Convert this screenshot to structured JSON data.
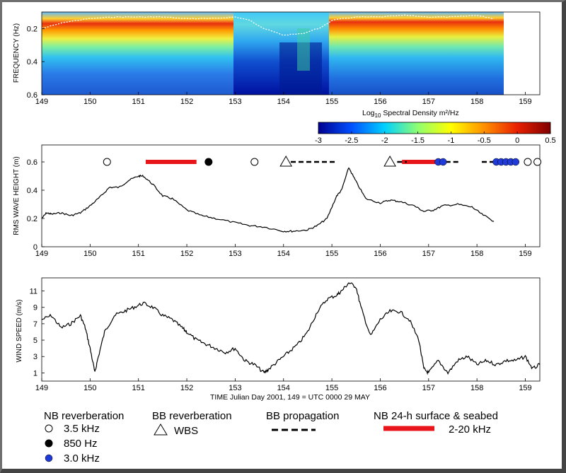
{
  "colors": {
    "trace": "#000000",
    "nb_surface_seabed": "#e8161a",
    "marker_850hz": "#000000",
    "marker_3khz": "#1f3ad6",
    "bb_propagation": "#000000",
    "peak_frequency_trace": "#ffffff"
  },
  "chart_data": [
    {
      "type": "heatmap",
      "ylabel": "FREQUENCY (Hz)",
      "x_ticks": [
        "149",
        "150",
        "151",
        "152",
        "153",
        "154",
        "155",
        "156",
        "157",
        "158",
        "159"
      ],
      "y_ticks": [
        "0.2",
        "0.4",
        "0.6"
      ],
      "xlim": [
        149,
        159.3
      ],
      "ylim": [
        0.6,
        0.1
      ],
      "data_extent_x": [
        149,
        158.35
      ],
      "colorbar": {
        "label_main": "Log",
        "label_sub": "10",
        "label_rest": " Spectral Density m²/Hz",
        "range": [
          -3,
          0.5
        ],
        "ticks": [
          "-3",
          "-2.5",
          "-2",
          "-1.5",
          "-1",
          "-0.5",
          "0",
          "0.5"
        ],
        "colors": [
          "#00008f",
          "#0050ff",
          "#00d0ff",
          "#8fff70",
          "#ffff00",
          "#ff9000",
          "#e82000",
          "#800000"
        ]
      },
      "peak_frequency": {
        "x": [
          149.0,
          149.5,
          150.0,
          150.5,
          151.0,
          151.5,
          152.0,
          152.5,
          153.0,
          153.3,
          153.6,
          154.0,
          154.4,
          154.8,
          155.0,
          155.5,
          156.0,
          156.5,
          157.0,
          157.5,
          158.0,
          158.35
        ],
        "y": [
          0.2,
          0.16,
          0.14,
          0.13,
          0.13,
          0.13,
          0.14,
          0.14,
          0.13,
          0.15,
          0.2,
          0.24,
          0.23,
          0.19,
          0.15,
          0.13,
          0.13,
          0.12,
          0.13,
          0.13,
          0.12,
          0.14
        ]
      }
    },
    {
      "type": "line",
      "ylabel": "RMS WAVE HEIGHT (m)",
      "x_ticks": [
        "149",
        "150",
        "151",
        "152",
        "153",
        "154",
        "155",
        "156",
        "157",
        "158",
        "159"
      ],
      "y_ticks": [
        "0",
        "0.2",
        "0.4",
        "0.6"
      ],
      "xlim": [
        149,
        159.3
      ],
      "ylim": [
        0,
        0.72
      ],
      "series": [
        {
          "x": [
            149.0,
            149.1,
            149.2,
            149.4,
            149.6,
            149.8,
            150.0,
            150.2,
            150.4,
            150.6,
            150.8,
            151.0,
            151.1,
            151.3,
            151.5,
            151.7,
            152.0,
            152.3,
            152.6,
            153.0,
            153.3,
            153.6,
            154.0,
            154.2,
            154.5,
            154.7,
            154.9,
            155.1,
            155.2,
            155.35,
            155.5,
            155.7,
            156.0,
            156.2,
            156.4,
            156.7,
            156.9,
            157.1,
            157.3,
            157.6,
            157.9,
            158.1,
            158.35
          ],
          "y": [
            0.2,
            0.24,
            0.23,
            0.24,
            0.22,
            0.24,
            0.29,
            0.35,
            0.42,
            0.42,
            0.47,
            0.5,
            0.5,
            0.44,
            0.36,
            0.34,
            0.26,
            0.22,
            0.2,
            0.17,
            0.15,
            0.14,
            0.11,
            0.11,
            0.12,
            0.15,
            0.2,
            0.36,
            0.4,
            0.56,
            0.46,
            0.34,
            0.31,
            0.33,
            0.32,
            0.29,
            0.25,
            0.26,
            0.29,
            0.3,
            0.28,
            0.23,
            0.18
          ]
        }
      ],
      "events_y": 0.6,
      "nb_35khz": [
        150.35,
        153.4,
        159.05,
        159.25
      ],
      "nb_850hz": [
        152.45
      ],
      "nb_30khz": [
        157.2,
        157.3,
        158.4,
        158.5,
        158.6,
        158.7,
        158.8
      ],
      "wbs": [
        154.05,
        156.2
      ],
      "bb_propagation_spans": [
        [
          154.15,
          155.1
        ],
        [
          156.35,
          156.55
        ],
        [
          157.35,
          157.65
        ],
        [
          158.1,
          158.45
        ]
      ],
      "nb_surface_seabed_spans": [
        [
          151.15,
          152.2
        ],
        [
          156.45,
          157.3
        ]
      ]
    },
    {
      "type": "line",
      "ylabel": "WIND SPEED (m/s)",
      "xlabel": "TIME Julian Day 2001, 149 = UTC 0000 29 MAY",
      "x_ticks": [
        "149",
        "150",
        "151",
        "152",
        "153",
        "154",
        "155",
        "156",
        "157",
        "158",
        "159"
      ],
      "y_ticks": [
        "1",
        "3",
        "5",
        "7",
        "9",
        "11"
      ],
      "xlim": [
        149,
        159.3
      ],
      "ylim": [
        0,
        12.6
      ],
      "series": [
        {
          "x": [
            149.0,
            149.2,
            149.4,
            149.6,
            149.8,
            149.9,
            150.0,
            150.1,
            150.15,
            150.3,
            150.5,
            150.7,
            150.9,
            151.1,
            151.3,
            151.5,
            151.7,
            151.9,
            152.0,
            152.2,
            152.4,
            152.6,
            152.8,
            153.0,
            153.2,
            153.4,
            153.6,
            153.7,
            153.9,
            154.1,
            154.3,
            154.5,
            154.7,
            154.9,
            155.1,
            155.2,
            155.35,
            155.5,
            155.6,
            155.8,
            156.0,
            156.2,
            156.4,
            156.6,
            156.8,
            156.9,
            157.0,
            157.2,
            157.4,
            157.6,
            157.8,
            158.0,
            158.2,
            158.4,
            158.6,
            158.8,
            159.0,
            159.15,
            159.3
          ],
          "y": [
            7.5,
            8.0,
            6.5,
            7.0,
            8.0,
            6.5,
            4.0,
            1.0,
            2.5,
            6.0,
            8.0,
            8.5,
            9.0,
            9.5,
            9.0,
            8.0,
            7.5,
            6.5,
            6.0,
            5.0,
            4.5,
            4.0,
            3.5,
            4.0,
            2.5,
            2.0,
            1.0,
            1.5,
            2.5,
            3.5,
            4.5,
            6.0,
            8.5,
            10.0,
            10.5,
            11.0,
            12.0,
            11.5,
            9.0,
            5.5,
            7.5,
            8.5,
            8.5,
            7.5,
            5.0,
            1.5,
            1.0,
            2.5,
            1.0,
            2.5,
            3.0,
            2.0,
            2.5,
            2.0,
            2.5,
            2.5,
            3.0,
            1.5,
            2.0
          ]
        }
      ]
    }
  ],
  "legend": {
    "nb_title": "NB reverberation",
    "nb_35": "3.5 kHz",
    "nb_850": "850  Hz",
    "nb_30": "3.0 kHz",
    "bb_title": "BB reverberation",
    "wbs": "WBS",
    "prop_title": "BB propagation",
    "surface_title": "NB 24-h surface & seabed",
    "surface_range": "2-20 kHz"
  }
}
